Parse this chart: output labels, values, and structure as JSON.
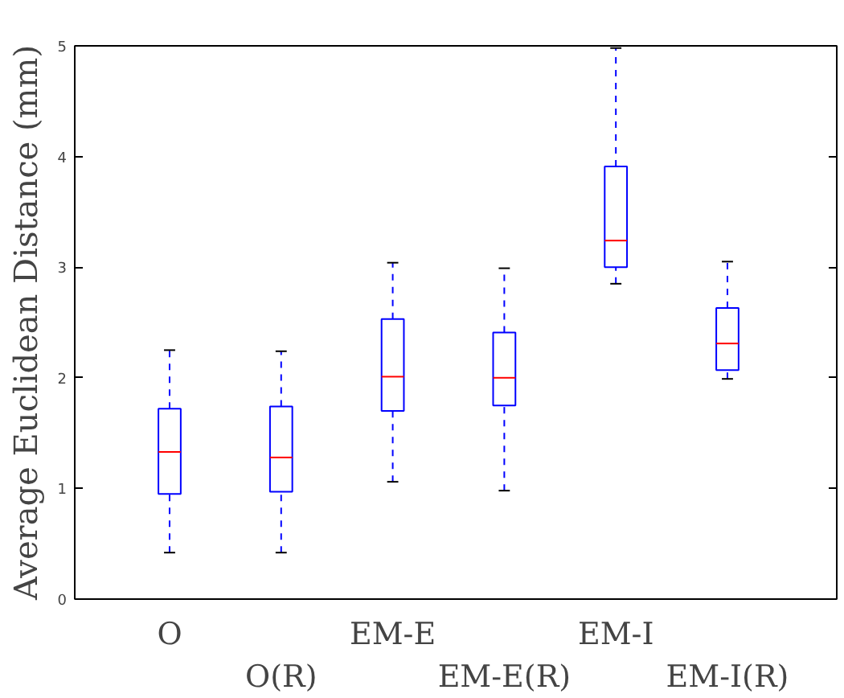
{
  "chart_data": {
    "type": "box",
    "ylabel": "Average Euclidean Distance (mm)",
    "categories": [
      "O",
      "O(R)",
      "EM-E",
      "EM-E(R)",
      "EM-I",
      "EM-I(R)"
    ],
    "ylim": [
      0,
      5
    ],
    "yticks": [
      0,
      1,
      2,
      3,
      4,
      5
    ],
    "series": [
      {
        "color": "#0000ff",
        "boxes": [
          {
            "low": 0.42,
            "q1": 0.95,
            "median": 1.33,
            "q3": 1.72,
            "high": 2.25
          },
          {
            "low": 0.42,
            "q1": 0.97,
            "median": 1.28,
            "q3": 1.74,
            "high": 2.24
          },
          {
            "low": 1.06,
            "q1": 1.7,
            "median": 2.01,
            "q3": 2.53,
            "high": 3.04
          },
          {
            "low": 0.98,
            "q1": 1.75,
            "median": 2.0,
            "q3": 2.41,
            "high": 2.99
          },
          {
            "low": 2.85,
            "q1": 3.0,
            "median": 3.24,
            "q3": 3.91,
            "high": 4.98
          },
          {
            "low": 1.99,
            "q1": 2.07,
            "median": 2.31,
            "q3": 2.63,
            "high": 3.05
          }
        ]
      }
    ]
  }
}
